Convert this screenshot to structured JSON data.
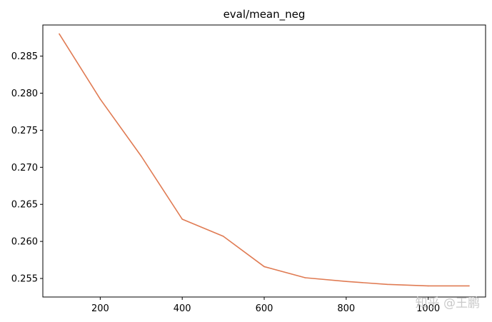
{
  "chart_data": {
    "type": "line",
    "title": "eval/mean_neg",
    "xlabel": "",
    "ylabel": "",
    "x": [
      100,
      200,
      300,
      400,
      500,
      600,
      700,
      800,
      900,
      1000,
      1100
    ],
    "series": [
      {
        "values": [
          0.288,
          0.2792,
          0.2715,
          0.263,
          0.2607,
          0.2566,
          0.2551,
          0.2546,
          0.2542,
          0.254,
          0.254
        ],
        "color": "#e07b53"
      }
    ],
    "xlim": [
      60,
      1140
    ],
    "ylim": [
      0.2525,
      0.2892
    ],
    "xticks": [
      200,
      400,
      600,
      800,
      1000
    ],
    "yticks": [
      0.255,
      0.26,
      0.265,
      0.27,
      0.275,
      0.28,
      0.285
    ],
    "ytick_labels": [
      "0.255",
      "0.260",
      "0.265",
      "0.270",
      "0.275",
      "0.280",
      "0.285"
    ],
    "grid": false,
    "legend": "none"
  },
  "watermark": "知乎 @王鹏"
}
